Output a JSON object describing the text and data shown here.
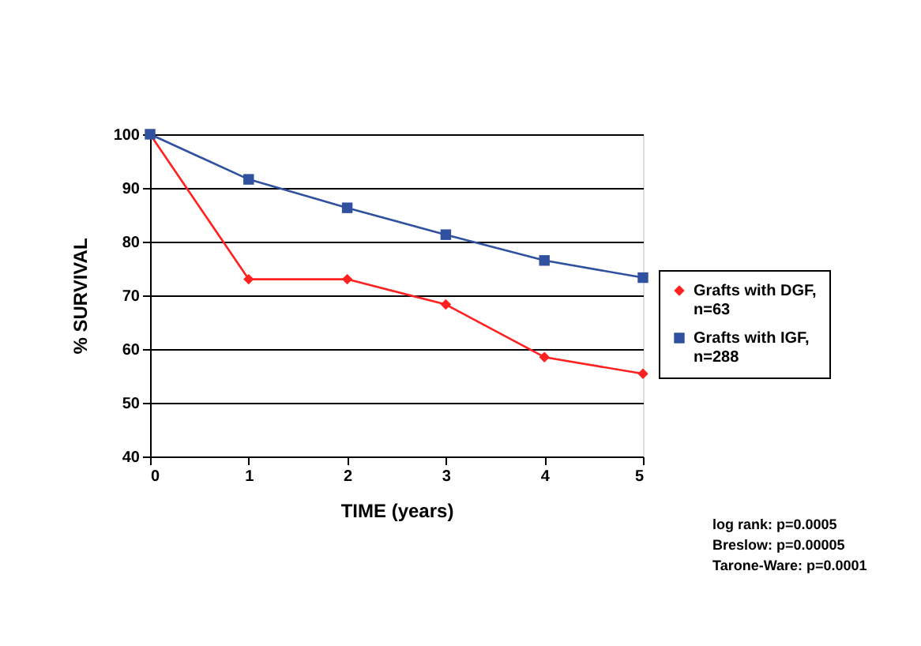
{
  "chart_data": {
    "type": "line",
    "xlabel": "TIME (years)",
    "ylabel": "% SURVIVAL",
    "x": [
      0,
      1,
      2,
      3,
      4,
      5
    ],
    "series": [
      {
        "name": "Grafts with DGF, n=63",
        "color": "#ff2020",
        "marker": "diamond",
        "values": [
          100,
          73,
          73,
          68.3,
          58.5,
          55.4
        ]
      },
      {
        "name": "Grafts with IGF, n=288",
        "color": "#3050a0",
        "marker": "square",
        "values": [
          100,
          91.6,
          86.3,
          81.3,
          76.5,
          73.3
        ]
      }
    ],
    "xlim": [
      0,
      5
    ],
    "xticks": [
      0,
      1,
      2,
      3,
      4,
      5
    ],
    "ylim": [
      40,
      100
    ],
    "yticks": [
      40,
      50,
      60,
      70,
      80,
      90,
      100
    ],
    "grid": "y",
    "legend": "right",
    "annotations": [
      "log rank: p=0.0005",
      "Breslow: p=0.00005",
      "Tarone-Ware: p=0.0001"
    ]
  }
}
